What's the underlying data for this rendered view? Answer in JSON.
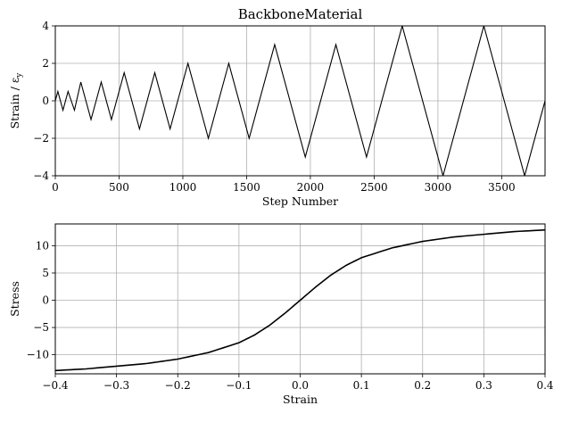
{
  "figure": {
    "background": "#ffffff",
    "line_color": "#000000",
    "grid_color": "#b0b0b0"
  },
  "chart_data": [
    {
      "type": "line",
      "title": "BackboneMaterial",
      "xlabel": "Step Number",
      "ylabel": "Strain / εy",
      "xlim": [
        0,
        3840
      ],
      "ylim": [
        -4,
        4
      ],
      "grid": true,
      "xticks": [
        0,
        500,
        1000,
        1500,
        2000,
        2500,
        3000,
        3500
      ],
      "yticks": [
        -4,
        -2,
        0,
        2,
        4
      ],
      "xtick_labels": [
        "0",
        "500",
        "1000",
        "1500",
        "2000",
        "2500",
        "3000",
        "3500"
      ],
      "ytick_labels": [
        "−4",
        "−2",
        "0",
        "2",
        "4"
      ],
      "series": [
        {
          "x": [
            0,
            20,
            60,
            100,
            150,
            200,
            280,
            360,
            440,
            540,
            660,
            780,
            900,
            1040,
            1200,
            1360,
            1520,
            1720,
            1960,
            2200,
            2440,
            2720,
            3040,
            3360,
            3680,
            3840
          ],
          "y": [
            0,
            0.5,
            -0.5,
            0.5,
            -0.5,
            1,
            -1,
            1,
            -1,
            1.5,
            -1.5,
            1.5,
            -1.5,
            2,
            -2,
            2,
            -2,
            3,
            -3,
            3,
            -3,
            4,
            -4,
            4,
            -4,
            0
          ]
        }
      ]
    },
    {
      "type": "line",
      "title": "",
      "xlabel": "Strain",
      "ylabel": "Stress",
      "xlim": [
        -0.4,
        0.4
      ],
      "ylim": [
        -13.5,
        14
      ],
      "grid": true,
      "xticks": [
        -0.4,
        -0.3,
        -0.2,
        -0.1,
        0,
        0.1,
        0.2,
        0.3,
        0.4
      ],
      "yticks": [
        -10,
        -5,
        0,
        5,
        10
      ],
      "xtick_labels": [
        "−0.4",
        "−0.3",
        "−0.2",
        "−0.1",
        "0.0",
        "0.1",
        "0.2",
        "0.3",
        "0.4"
      ],
      "ytick_labels": [
        "−10",
        "−5",
        "0",
        "5",
        "10"
      ],
      "series": [
        {
          "x": [
            -0.4,
            -0.35,
            -0.3,
            -0.25,
            -0.2,
            -0.15,
            -0.1,
            -0.075,
            -0.05,
            -0.025,
            0,
            0.025,
            0.05,
            0.075,
            0.1,
            0.15,
            0.2,
            0.25,
            0.3,
            0.35,
            0.4
          ],
          "y": [
            -12.9,
            -12.6,
            -12.1,
            -11.6,
            -10.8,
            -9.6,
            -7.8,
            -6.4,
            -4.6,
            -2.4,
            0,
            2.4,
            4.6,
            6.4,
            7.8,
            9.6,
            10.8,
            11.6,
            12.1,
            12.6,
            12.9
          ]
        }
      ]
    }
  ]
}
